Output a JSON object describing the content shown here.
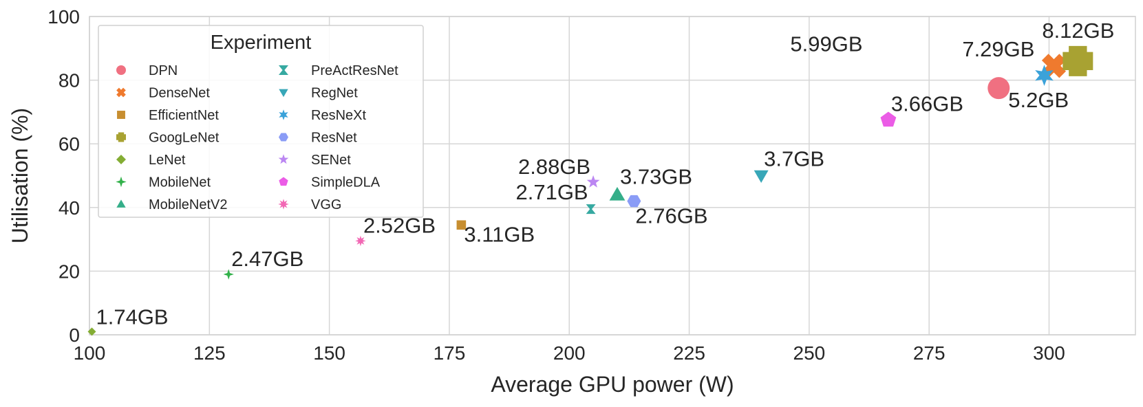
{
  "chart_data": {
    "type": "scatter",
    "xlabel": "Average GPU power (W)",
    "ylabel": "Utilisation (%)",
    "xlim": [
      100,
      318
    ],
    "ylim": [
      0,
      100
    ],
    "xticks": [
      100,
      125,
      150,
      175,
      200,
      225,
      250,
      275,
      300
    ],
    "yticks": [
      0,
      20,
      40,
      60,
      80,
      100
    ],
    "grid": true,
    "legend": {
      "title": "Experiment",
      "placement": "top-left",
      "columns": 2
    },
    "series": [
      {
        "name": "DPN",
        "color": "#f07081",
        "marker": "circle",
        "x": 289.5,
        "y": 77.5,
        "label": "5.2GB"
      },
      {
        "name": "DenseNet",
        "color": "#ef7a2e",
        "marker": "x",
        "x": 301,
        "y": 84.5,
        "label": "7.29GB"
      },
      {
        "name": "EfficientNet",
        "color": "#c78e30",
        "marker": "square",
        "x": 177.5,
        "y": 34.5,
        "label": "3.11GB"
      },
      {
        "name": "GoogLeNet",
        "color": "#a8a232",
        "marker": "plus",
        "x": 306,
        "y": 86,
        "label": "8.12GB"
      },
      {
        "name": "LeNet",
        "color": "#84ad34",
        "marker": "diamond",
        "x": 100.5,
        "y": 1,
        "label": "1.74GB"
      },
      {
        "name": "MobileNet",
        "color": "#32b14a",
        "marker": "star4",
        "x": 129,
        "y": 19,
        "label": "2.47GB"
      },
      {
        "name": "MobileNetV2",
        "color": "#35ae89",
        "marker": "triangle-up",
        "x": 210,
        "y": 44,
        "label": "3.73GB"
      },
      {
        "name": "PreActResNet",
        "color": "#36a9a1",
        "marker": "hourglass",
        "x": 204.5,
        "y": 39.5,
        "label": "2.71GB"
      },
      {
        "name": "RegNet",
        "color": "#38a7b8",
        "marker": "triangle-down",
        "x": 240,
        "y": 50,
        "label": "3.7GB"
      },
      {
        "name": "ResNeXt",
        "color": "#3ba2d9",
        "marker": "star6",
        "x": 299,
        "y": 81.5,
        "label": "5.99GB"
      },
      {
        "name": "ResNet",
        "color": "#8a9cf6",
        "marker": "hexagon",
        "x": 213.5,
        "y": 42,
        "label": "2.76GB"
      },
      {
        "name": "SENet",
        "color": "#bb86f2",
        "marker": "star5",
        "x": 205,
        "y": 48,
        "label": "2.88GB"
      },
      {
        "name": "SimpleDLA",
        "color": "#eb5ce6",
        "marker": "pentagon",
        "x": 266.5,
        "y": 67.5,
        "label": "3.66GB"
      },
      {
        "name": "VGG",
        "color": "#f267b4",
        "marker": "star8",
        "x": 156.5,
        "y": 29.5,
        "label": "2.52GB"
      }
    ]
  }
}
